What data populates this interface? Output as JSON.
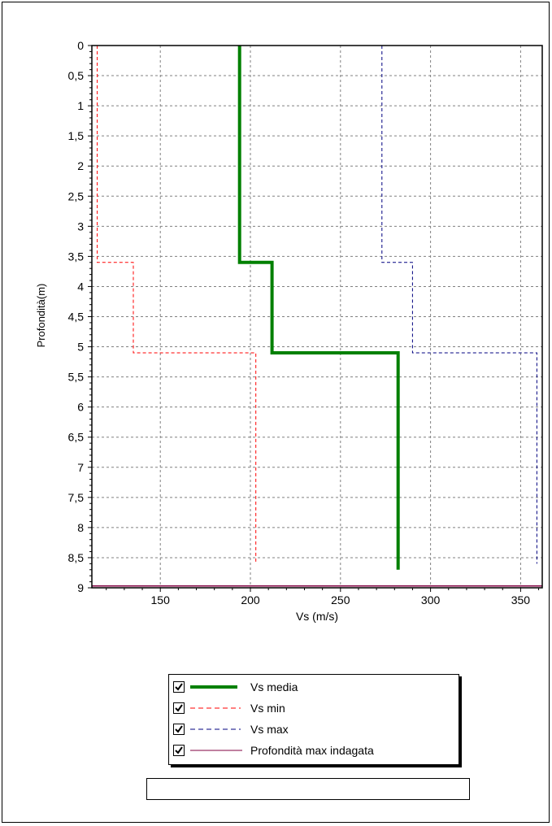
{
  "chart_data": {
    "type": "line",
    "xlabel": "Vs (m/s)",
    "ylabel": "Profondità(m)",
    "xlim": [
      112,
      362
    ],
    "ylim": [
      0,
      9
    ],
    "y_inverted": true,
    "grid": true,
    "x_ticks": [
      "150",
      "200",
      "250",
      "300",
      "350"
    ],
    "x_tick_values": [
      150,
      200,
      250,
      300,
      350
    ],
    "y_ticks": [
      "0",
      "0,5",
      "1",
      "1,5",
      "2",
      "2,5",
      "3",
      "3,5",
      "4",
      "4,5",
      "5",
      "5,5",
      "6",
      "6,5",
      "7",
      "7,5",
      "8",
      "8,5",
      "9"
    ],
    "y_tick_values": [
      0,
      0.5,
      1,
      1.5,
      2,
      2.5,
      3,
      3.5,
      4,
      4.5,
      5,
      5.5,
      6,
      6.5,
      7,
      7.5,
      8,
      8.5,
      9
    ],
    "series": [
      {
        "name": "Vs media",
        "style": "solid-thick",
        "color": "#008000",
        "points": [
          [
            194,
            0
          ],
          [
            194,
            3.6
          ],
          [
            212,
            3.6
          ],
          [
            212,
            5.1
          ],
          [
            282,
            5.1
          ],
          [
            282,
            8.7
          ]
        ]
      },
      {
        "name": "Vs min",
        "style": "dashed",
        "color": "#ff0000",
        "points": [
          [
            115,
            0
          ],
          [
            115,
            3.6
          ],
          [
            135,
            3.6
          ],
          [
            135,
            5.1
          ],
          [
            203,
            5.1
          ],
          [
            203,
            8.6
          ]
        ]
      },
      {
        "name": "Vs max",
        "style": "dashed",
        "color": "#000080",
        "points": [
          [
            273,
            0
          ],
          [
            273,
            3.6
          ],
          [
            290,
            3.6
          ],
          [
            290,
            5.1
          ],
          [
            359,
            5.1
          ],
          [
            359,
            8.6
          ]
        ]
      },
      {
        "name": "Profondità max indagata",
        "style": "solid-thin",
        "color": "#800040",
        "points": [
          [
            112,
            8.97
          ],
          [
            362,
            8.97
          ]
        ]
      }
    ],
    "legend": {
      "placement": "bottom"
    }
  },
  "legend": {
    "items": [
      {
        "label": "Vs media",
        "checked": true
      },
      {
        "label": "Vs min",
        "checked": true
      },
      {
        "label": "Vs max",
        "checked": true
      },
      {
        "label": "Profondità max indagata",
        "checked": true
      }
    ]
  },
  "footer_box": {
    "text": ""
  }
}
